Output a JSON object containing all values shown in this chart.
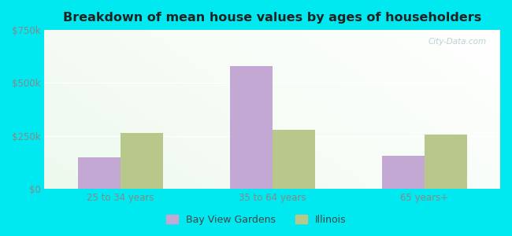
{
  "title": "Breakdown of mean house values by ages of householders",
  "categories": [
    "25 to 34 years",
    "35 to 64 years",
    "65 years+"
  ],
  "bay_view_values": [
    150000,
    580000,
    155000
  ],
  "illinois_values": [
    263000,
    280000,
    258000
  ],
  "bar_color_bay_view": "#c4a8d4",
  "bar_color_illinois": "#b8c88a",
  "ylim": [
    0,
    750000
  ],
  "yticks": [
    0,
    250000,
    500000,
    750000
  ],
  "ytick_labels": [
    "$0",
    "$250k",
    "$500k",
    "$750k"
  ],
  "legend_labels": [
    "Bay View Gardens",
    "Illinois"
  ],
  "background_outer": "#00e8f0",
  "watermark": "City-Data.com",
  "bar_width": 0.28,
  "title_fontsize": 11.5
}
